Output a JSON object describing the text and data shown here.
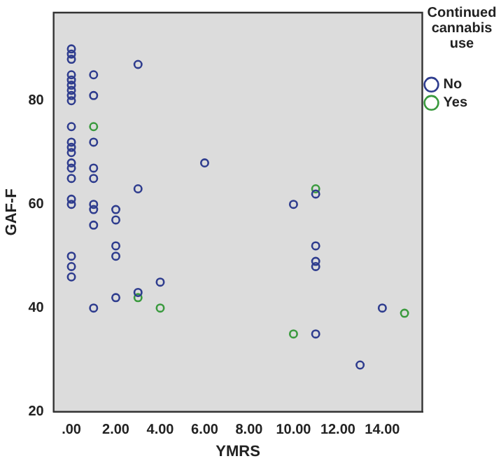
{
  "chart_data": {
    "type": "scatter",
    "xlabel": "YMRS",
    "ylabel": "GAF-F",
    "legend_title": "Continued cannabis use",
    "legend": "top right",
    "marker": "circle",
    "grid": false,
    "xlim": [
      -0.8,
      15.8
    ],
    "ylim": [
      20,
      97
    ],
    "xticks": [
      {
        "value": 0,
        "label": ".00"
      },
      {
        "value": 2,
        "label": "2.00"
      },
      {
        "value": 4,
        "label": "4.00"
      },
      {
        "value": 6,
        "label": "6.00"
      },
      {
        "value": 8,
        "label": "8.00"
      },
      {
        "value": 10,
        "label": "10.00"
      },
      {
        "value": 12,
        "label": "12.00"
      },
      {
        "value": 14,
        "label": "14.00"
      }
    ],
    "yticks": [
      20,
      40,
      60,
      80
    ],
    "series": [
      {
        "name": "No",
        "color": "#2e3c8e",
        "x": [
          0,
          0,
          0,
          0,
          0,
          0,
          0,
          0,
          0,
          0,
          0,
          0,
          0,
          0,
          0,
          0,
          0,
          0,
          0,
          0,
          0,
          1,
          1,
          1,
          1,
          1,
          1,
          1,
          1,
          1,
          2,
          2,
          2,
          2,
          2,
          3,
          3,
          3,
          4,
          6,
          10,
          11,
          11,
          11,
          11,
          11,
          13,
          14
        ],
        "values": [
          90,
          89,
          88,
          85,
          84,
          83,
          82,
          81,
          80,
          75,
          72,
          71,
          70,
          68,
          67,
          65,
          61,
          60,
          50,
          48,
          46,
          85,
          81,
          72,
          67,
          65,
          60,
          59,
          56,
          40,
          59,
          57,
          52,
          50,
          42,
          87,
          63,
          43,
          45,
          68,
          60,
          62,
          52,
          49,
          48,
          35,
          29,
          40
        ]
      },
      {
        "name": "Yes",
        "color": "#3a9a3e",
        "x": [
          1,
          3,
          4,
          10,
          11,
          15
        ],
        "values": [
          75,
          42,
          40,
          35,
          63,
          39
        ]
      }
    ]
  }
}
